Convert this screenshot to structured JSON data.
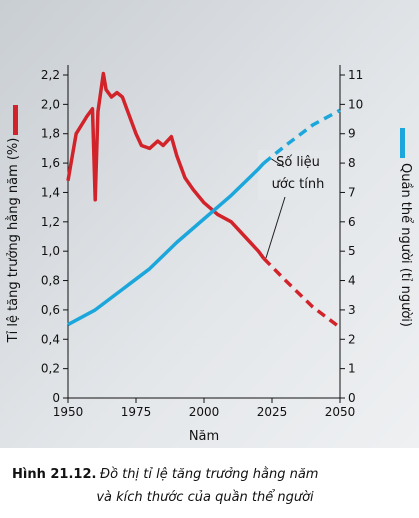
{
  "chart_data": {
    "type": "line",
    "y_label": "Tỉ lệ tăng trưởng hằng năm (%)",
    "y2_label": "Quần thể người (tỉ người)",
    "x_label": "Năm",
    "annotation": [
      "Số liệu",
      "ước tính"
    ],
    "caption": {
      "label": "Hình 21.12.",
      "text": [
        "Đồ thị tỉ lệ tăng trưởng hằng năm",
        "và kích thước của quần thể người"
      ]
    },
    "xlim": [
      1950,
      2050
    ],
    "xticks": [
      1950,
      1975,
      2000,
      2025,
      2050
    ],
    "ylim": [
      0,
      2.2
    ],
    "yticks": [
      0,
      {
        "value": 0.2,
        "label": "0,2"
      },
      {
        "value": 0.4,
        "label": "0,4"
      },
      {
        "value": 0.6,
        "label": "0,6"
      },
      {
        "value": 0.8,
        "label": "0,8"
      },
      {
        "value": 1.0,
        "label": "1,0"
      },
      {
        "value": 1.2,
        "label": "1,2"
      },
      {
        "value": 1.4,
        "label": "1,4"
      },
      {
        "value": 1.6,
        "label": "1,6"
      },
      {
        "value": 1.8,
        "label": "1,8"
      },
      {
        "value": 2.0,
        "label": "2,0"
      },
      {
        "value": 2.2,
        "label": "2,2"
      }
    ],
    "y2lim": [
      0,
      11
    ],
    "y2ticks": [
      0,
      1,
      2,
      3,
      4,
      5,
      6,
      7,
      8,
      9,
      10,
      11
    ],
    "series": [
      {
        "color": "#d2232a",
        "style": "solid",
        "axis": "y",
        "x": [
          1950,
          1953,
          1957,
          1959,
          1960,
          1961,
          1963,
          1964,
          1966,
          1968,
          1970,
          1972,
          1975,
          1977,
          1980,
          1983,
          1985,
          1988,
          1990,
          1993,
          1996,
          2000,
          2005,
          2010,
          2015,
          2020,
          2022
        ],
        "values": [
          1.48,
          1.8,
          1.92,
          1.97,
          1.35,
          1.95,
          2.21,
          2.1,
          2.05,
          2.08,
          2.05,
          1.95,
          1.8,
          1.72,
          1.7,
          1.75,
          1.72,
          1.78,
          1.65,
          1.5,
          1.42,
          1.33,
          1.25,
          1.2,
          1.1,
          1.0,
          0.95
        ]
      },
      {
        "color": "#d2232a",
        "style": "dashed",
        "axis": "y",
        "x": [
          2022,
          2030,
          2040,
          2050
        ],
        "values": [
          0.95,
          0.8,
          0.62,
          0.48
        ]
      },
      {
        "color": "#1ca7dc",
        "style": "solid",
        "axis": "y2",
        "x": [
          1950,
          1960,
          1970,
          1980,
          1990,
          2000,
          2010,
          2020,
          2022
        ],
        "values": [
          2.5,
          3.0,
          3.7,
          4.4,
          5.3,
          6.1,
          6.9,
          7.8,
          8.0
        ]
      },
      {
        "color": "#1ca7dc",
        "style": "dashed",
        "axis": "y2",
        "x": [
          2022,
          2030,
          2040,
          2050
        ],
        "values": [
          8.0,
          8.6,
          9.3,
          9.8
        ]
      }
    ]
  }
}
